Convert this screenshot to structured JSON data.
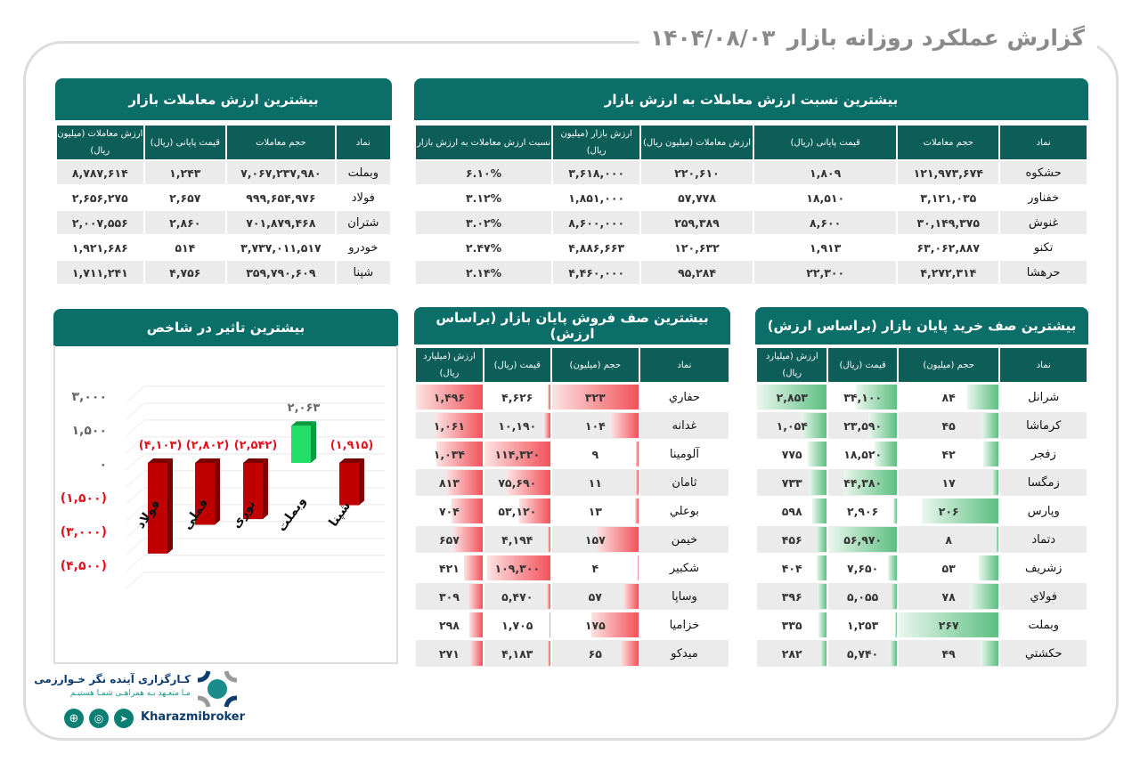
{
  "header": {
    "title": "گزارش عملکرد روزانه بازار",
    "date": "۱۴۰۴/۰۸/۰۳"
  },
  "ratio_table": {
    "title": "بیشترین نسبت ارزش معاملات به ارزش بازار",
    "columns": [
      "نماد",
      "حجم معاملات",
      "قیمت پایانی (ریال)",
      "ارزش معاملات (میلیون ریال)",
      "ارزش بازار (میلیون ریال)",
      "نسبت ارزش معاملات به ارزش بازار"
    ],
    "rows": [
      [
        "حشکوه",
        "۱۲۱,۹۷۳,۶۷۴",
        "۱,۸۰۹",
        "۲۲۰,۶۱۰",
        "۳,۶۱۸,۰۰۰",
        "۶.۱۰%"
      ],
      [
        "خفناور",
        "۳,۱۲۱,۰۳۵",
        "۱۸,۵۱۰",
        "۵۷,۷۷۸",
        "۱,۸۵۱,۰۰۰",
        "۳.۱۲%"
      ],
      [
        "غنوش",
        "۳۰,۱۴۹,۳۷۵",
        "۸,۶۰۰",
        "۲۵۹,۳۸۹",
        "۸,۶۰۰,۰۰۰",
        "۳.۰۲%"
      ],
      [
        "تکنو",
        "۶۳,۰۶۲,۸۸۷",
        "۱,۹۱۳",
        "۱۲۰,۶۳۲",
        "۴,۸۸۶,۶۶۳",
        "۲.۴۷%"
      ],
      [
        "حرهشا",
        "۴,۲۷۲,۳۱۴",
        "۲۲,۳۰۰",
        "۹۵,۲۸۴",
        "۴,۴۶۰,۰۰۰",
        "۲.۱۴%"
      ]
    ]
  },
  "value_table": {
    "title": "بیشترین ارزش معاملات بازار",
    "columns": [
      "نماد",
      "حجم معاملات",
      "قیمت پایانی (ریال)",
      "ارزش معاملات (میلیون ریال)"
    ],
    "rows": [
      [
        "وبملت",
        "۷,۰۶۷,۲۳۷,۹۸۰",
        "۱,۲۴۳",
        "۸,۷۸۷,۶۱۴"
      ],
      [
        "فولاد",
        "۹۹۹,۶۵۴,۹۷۶",
        "۲,۶۵۷",
        "۲,۶۵۶,۲۷۵"
      ],
      [
        "شتران",
        "۷۰۱,۸۷۹,۴۶۸",
        "۲,۸۶۰",
        "۲,۰۰۷,۵۵۶"
      ],
      [
        "خودرو",
        "۳,۷۳۷,۰۱۱,۵۱۷",
        "۵۱۴",
        "۱,۹۲۱,۶۸۶"
      ],
      [
        "شپنا",
        "۳۵۹,۷۹۰,۶۰۹",
        "۴,۷۵۶",
        "۱,۷۱۱,۲۴۱"
      ]
    ]
  },
  "sell_queue": {
    "title": "بیشترین صف فروش پایان بازار (براساس ارزش)",
    "color": "#f2525a",
    "columns": [
      "نماد",
      "حجم (میلیون)",
      "قیمت (ریال)",
      "ارزش (میلیارد ریال)"
    ],
    "rows": [
      [
        "حفاري",
        "۳۲۳",
        "۴,۶۲۶",
        "۱,۴۹۶"
      ],
      [
        "غدانه",
        "۱۰۴",
        "۱۰,۱۹۰",
        "۱,۰۶۱"
      ],
      [
        "آلومینا",
        "۹",
        "۱۱۴,۳۲۰",
        "۱,۰۳۴"
      ],
      [
        "ثامان",
        "۱۱",
        "۷۵,۶۹۰",
        "۸۱۳"
      ],
      [
        "بوعلي",
        "۱۳",
        "۵۳,۱۲۰",
        "۷۰۴"
      ],
      [
        "خیمن",
        "۱۵۷",
        "۴,۱۹۴",
        "۶۵۷"
      ],
      [
        "شکبیر",
        "۴",
        "۱۰۹,۳۰۰",
        "۴۲۱"
      ],
      [
        "وساپا",
        "۵۷",
        "۵,۴۷۰",
        "۳۰۹"
      ],
      [
        "خزامیا",
        "۱۷۵",
        "۱,۷۰۵",
        "۲۹۸"
      ],
      [
        "میدکو",
        "۶۵",
        "۴,۱۸۳",
        "۲۷۱"
      ]
    ]
  },
  "buy_queue": {
    "title": "بیشترین صف خرید پایان بازار (براساس ارزش)",
    "color": "#5cbf80",
    "columns": [
      "نماد",
      "حجم (میلیون)",
      "قیمت (ریال)",
      "ارزش (میلیارد ریال)"
    ],
    "rows": [
      [
        "شرانل",
        "۸۴",
        "۳۴,۱۰۰",
        "۲,۸۵۳"
      ],
      [
        "کرماشا",
        "۴۵",
        "۲۳,۵۹۰",
        "۱,۰۵۴"
      ],
      [
        "زفجر",
        "۴۲",
        "۱۸,۵۲۰",
        "۷۷۵"
      ],
      [
        "زمگسا",
        "۱۷",
        "۴۴,۳۸۰",
        "۷۳۳"
      ],
      [
        "وپارس",
        "۲۰۶",
        "۲,۹۰۶",
        "۵۹۸"
      ],
      [
        "دتماد",
        "۸",
        "۵۶,۹۷۰",
        "۴۵۶"
      ],
      [
        "زشریف",
        "۵۳",
        "۷,۶۵۰",
        "۴۰۴"
      ],
      [
        "فولاي",
        "۷۸",
        "۵,۰۵۵",
        "۳۹۶"
      ],
      [
        "وبملت",
        "۲۶۷",
        "۱,۲۵۳",
        "۳۳۵"
      ],
      [
        "حکشتي",
        "۴۹",
        "۵,۷۴۰",
        "۲۸۲"
      ]
    ]
  },
  "index_impact": {
    "title": "بیشترین تاثیر در شاخص"
  },
  "chart_data": {
    "type": "bar",
    "categories": [
      "فولاد",
      "فملی",
      "نوری",
      "وبملت",
      "شپنا"
    ],
    "values": [
      -4103,
      -2802,
      -2542,
      2063,
      -1915
    ],
    "data_labels": [
      "(۴,۱۰۳)",
      "(۲,۸۰۲)",
      "(۲,۵۴۲)",
      "۲,۰۶۳",
      "(۱,۹۱۵)"
    ],
    "ylim": [
      -4500,
      3000
    ],
    "yticks": [
      3000,
      1500,
      0,
      -1500,
      -3000,
      -4500
    ],
    "ytick_labels": [
      "۳,۰۰۰",
      "۱,۵۰۰",
      "۰",
      "(۱,۵۰۰)",
      "(۳,۰۰۰)",
      "(۴,۵۰۰)"
    ],
    "colors": {
      "positive": "#22dd66",
      "negative": "#c00000"
    },
    "grid": true
  },
  "footer": {
    "brand_fa": "کـارگزاری آینده نگر خـوارزمی",
    "slogan": "مـا متعـهد بـه همراهـی شمـا هستیـم",
    "brand_en": "Kharazmibroker",
    "icons": [
      "globe-icon",
      "instagram-icon",
      "telegram-icon"
    ]
  }
}
